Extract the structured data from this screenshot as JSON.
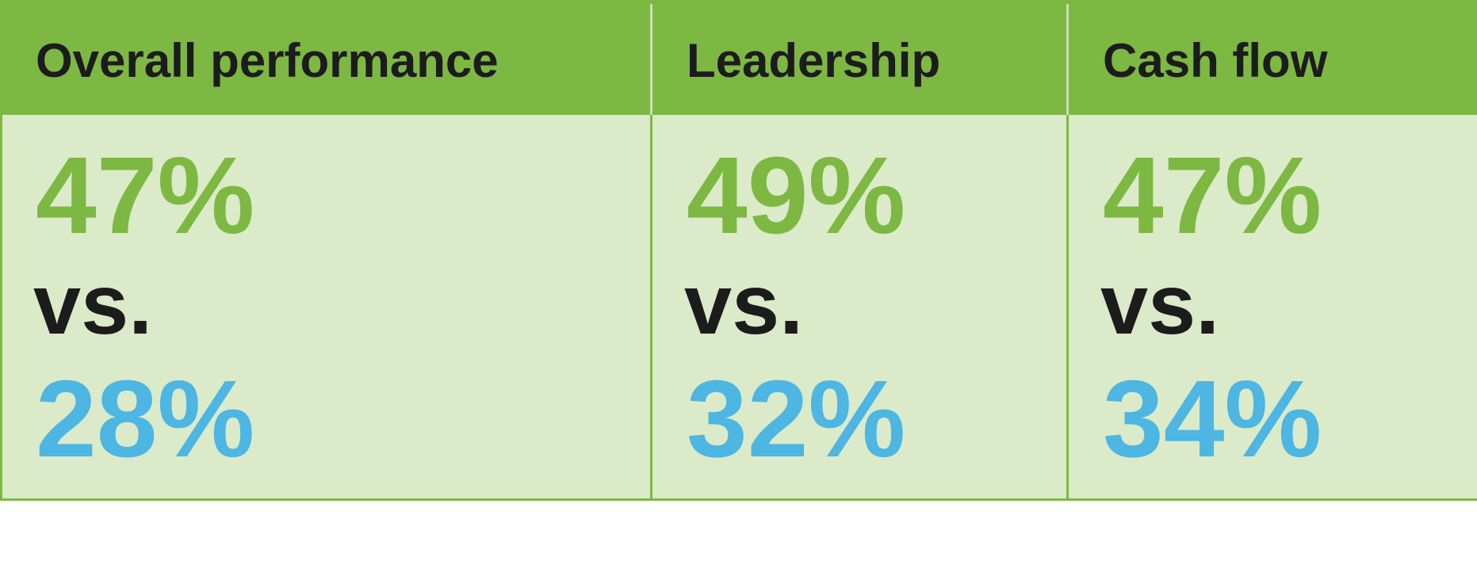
{
  "table": {
    "headers": [
      "Overall performance",
      "Leadership",
      "Cash flow"
    ],
    "rows": [
      [
        "47%",
        "49%",
        "47%"
      ],
      [
        "vs.",
        "vs.",
        "vs."
      ],
      [
        "28%",
        "32%",
        "34%"
      ]
    ]
  }
}
